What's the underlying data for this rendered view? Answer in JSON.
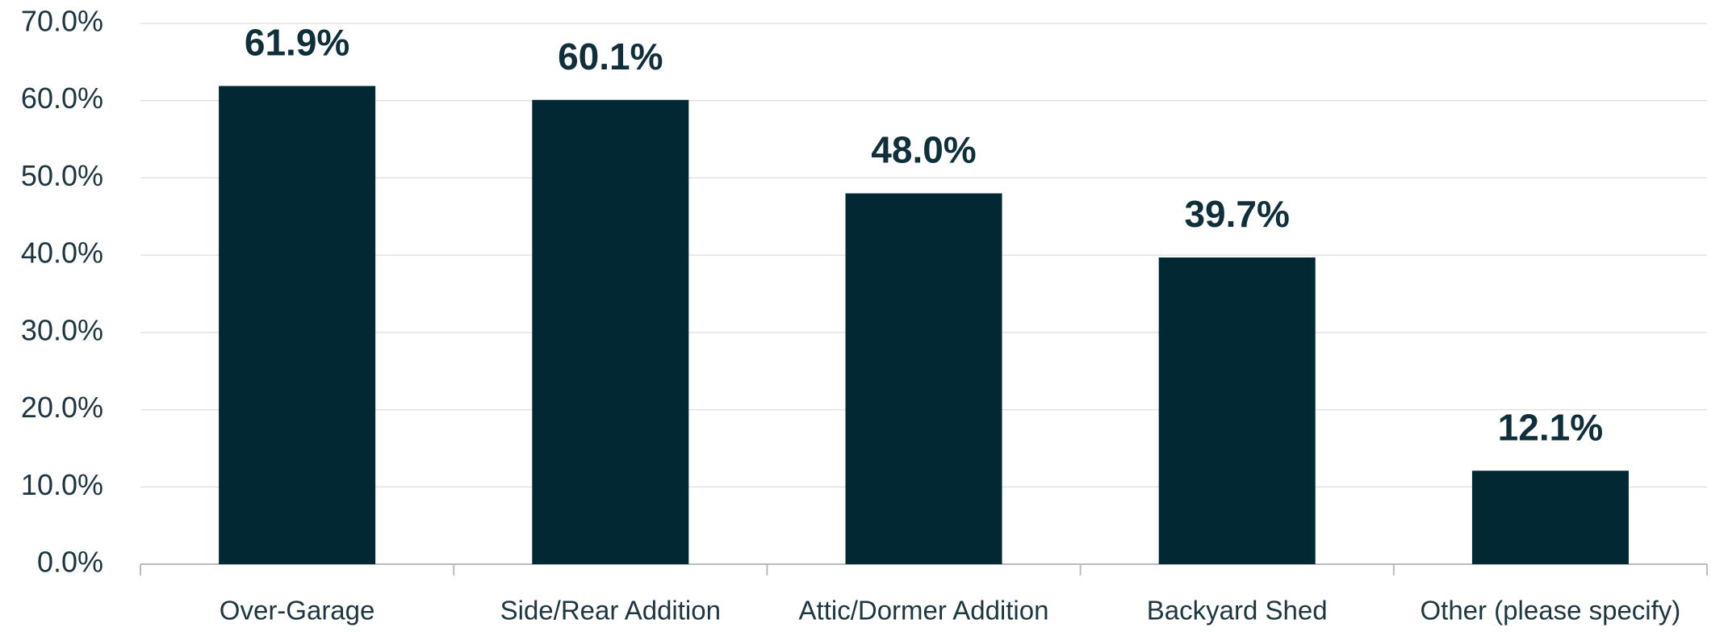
{
  "chart_data": {
    "type": "bar",
    "categories": [
      "Over-Garage",
      "Side/Rear Addition",
      "Attic/Dormer Addition",
      "Backyard Shed",
      "Other (please specify)"
    ],
    "values": [
      61.9,
      60.1,
      48.0,
      39.7,
      12.1
    ],
    "value_labels": [
      "61.9%",
      "60.1%",
      "48.0%",
      "39.7%",
      "12.1%"
    ],
    "color": "#022833",
    "ylim": [
      0,
      70
    ],
    "yticks": [
      {
        "value": 0,
        "label": "0.0%"
      },
      {
        "value": 10,
        "label": "10.0%"
      },
      {
        "value": 20,
        "label": "20.0%"
      },
      {
        "value": 30,
        "label": "30.0%"
      },
      {
        "value": 40,
        "label": "40.0%"
      },
      {
        "value": 50,
        "label": "50.0%"
      },
      {
        "value": 60,
        "label": "60.0%"
      },
      {
        "value": 70,
        "label": "70.0%"
      }
    ],
    "grid": true
  }
}
